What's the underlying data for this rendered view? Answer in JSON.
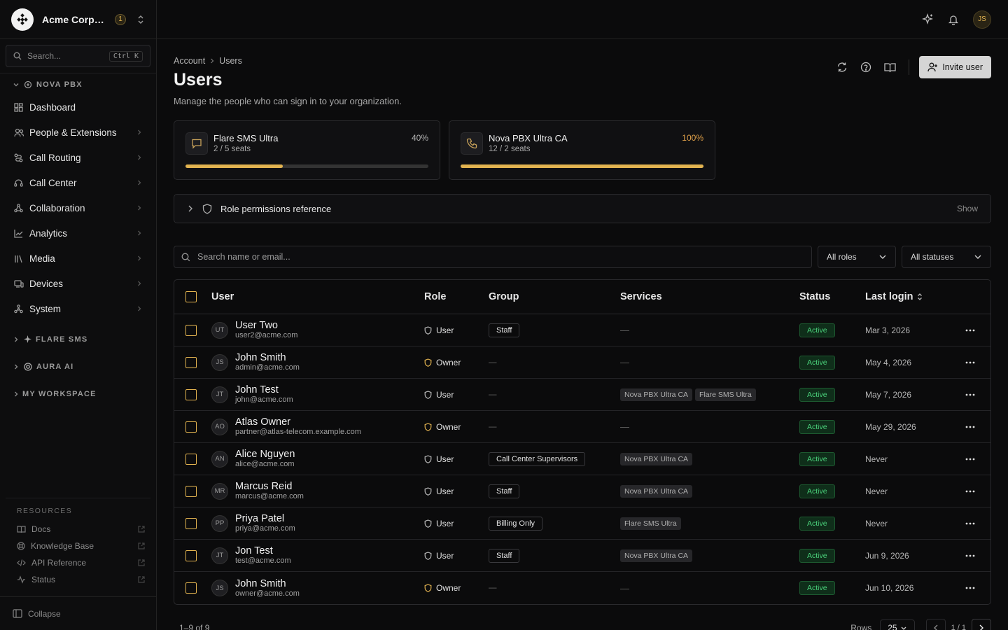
{
  "org": {
    "name": "Acme Corporation",
    "badge": "1"
  },
  "sidebar": {
    "search_placeholder": "Search...",
    "search_shortcut": "Ctrl K",
    "section_nova": "NOVA PBX",
    "items": [
      {
        "label": "Dashboard",
        "icon": "dashboard-icon"
      },
      {
        "label": "People & Extensions",
        "icon": "people-icon"
      },
      {
        "label": "Call Routing",
        "icon": "routing-icon"
      },
      {
        "label": "Call Center",
        "icon": "headset-icon"
      },
      {
        "label": "Collaboration",
        "icon": "collaboration-icon"
      },
      {
        "label": "Analytics",
        "icon": "chart-icon"
      },
      {
        "label": "Media",
        "icon": "media-icon"
      },
      {
        "label": "Devices",
        "icon": "devices-icon"
      },
      {
        "label": "System",
        "icon": "system-icon"
      }
    ],
    "section_flare": "FLARE SMS",
    "section_aura": "AURA AI",
    "section_workspace": "MY WORKSPACE",
    "resources_title": "RESOURCES",
    "resources": [
      {
        "label": "Docs"
      },
      {
        "label": "Knowledge Base"
      },
      {
        "label": "API Reference"
      },
      {
        "label": "Status"
      }
    ],
    "collapse_label": "Collapse"
  },
  "topbar": {
    "avatar": "JS"
  },
  "page": {
    "breadcrumb": [
      "Account",
      "Users"
    ],
    "title": "Users",
    "subtitle": "Manage the people who can sign in to your organization.",
    "invite_label": "Invite user"
  },
  "licenses": [
    {
      "name": "Flare SMS Ultra",
      "seats": "2 / 5 seats",
      "percent": "40%",
      "fraction": 0.4
    },
    {
      "name": "Nova PBX Ultra CA",
      "seats": "12 / 2 seats",
      "percent": "100%",
      "fraction": 1.0
    }
  ],
  "roles_ref": {
    "label": "Role permissions reference",
    "action": "Show"
  },
  "filters": {
    "search_placeholder": "Search name or email...",
    "role": "All roles",
    "status": "All statuses"
  },
  "table": {
    "headers": {
      "user": "User",
      "role": "Role",
      "group": "Group",
      "services": "Services",
      "status": "Status",
      "last_login": "Last login"
    },
    "rows": [
      {
        "initials": "UT",
        "name": "User Two",
        "email": "user2@acme.com",
        "role": "User",
        "group": "Staff",
        "services": [],
        "status": "Active",
        "last_login": "Mar 3, 2026"
      },
      {
        "initials": "JS",
        "name": "John Smith",
        "email": "admin@acme.com",
        "role": "Owner",
        "group": "",
        "services": [],
        "status": "Active",
        "last_login": "May 4, 2026"
      },
      {
        "initials": "JT",
        "name": "John Test",
        "email": "john@acme.com",
        "role": "User",
        "group": "",
        "services": [
          "Nova PBX Ultra CA",
          "Flare SMS Ultra"
        ],
        "status": "Active",
        "last_login": "May 7, 2026"
      },
      {
        "initials": "AO",
        "name": "Atlas Owner",
        "email": "partner@atlas-telecom.example.com",
        "role": "Owner",
        "group": "",
        "services": [],
        "status": "Active",
        "last_login": "May 29, 2026"
      },
      {
        "initials": "AN",
        "name": "Alice Nguyen",
        "email": "alice@acme.com",
        "role": "User",
        "group": "Call Center Supervisors",
        "services": [
          "Nova PBX Ultra CA"
        ],
        "status": "Active",
        "last_login": "Never"
      },
      {
        "initials": "MR",
        "name": "Marcus Reid",
        "email": "marcus@acme.com",
        "role": "User",
        "group": "Staff",
        "services": [
          "Nova PBX Ultra CA"
        ],
        "status": "Active",
        "last_login": "Never"
      },
      {
        "initials": "PP",
        "name": "Priya Patel",
        "email": "priya@acme.com",
        "role": "User",
        "group": "Billing Only",
        "services": [
          "Flare SMS Ultra"
        ],
        "status": "Active",
        "last_login": "Never"
      },
      {
        "initials": "JT",
        "name": "Jon Test",
        "email": "test@acme.com",
        "role": "User",
        "group": "Staff",
        "services": [
          "Nova PBX Ultra CA"
        ],
        "status": "Active",
        "last_login": "Jun 9, 2026"
      },
      {
        "initials": "JS",
        "name": "John Smith",
        "email": "owner@acme.com",
        "role": "Owner",
        "group": "",
        "services": [],
        "status": "Active",
        "last_login": "Jun 10, 2026"
      }
    ]
  },
  "footer": {
    "range": "1–9 of 9",
    "rows_label": "Rows",
    "rows_value": "25",
    "page": "1 / 1"
  },
  "colors": {
    "accent": "#e2b350",
    "active": "#4ad07a",
    "bg": "#0b0b0c"
  }
}
